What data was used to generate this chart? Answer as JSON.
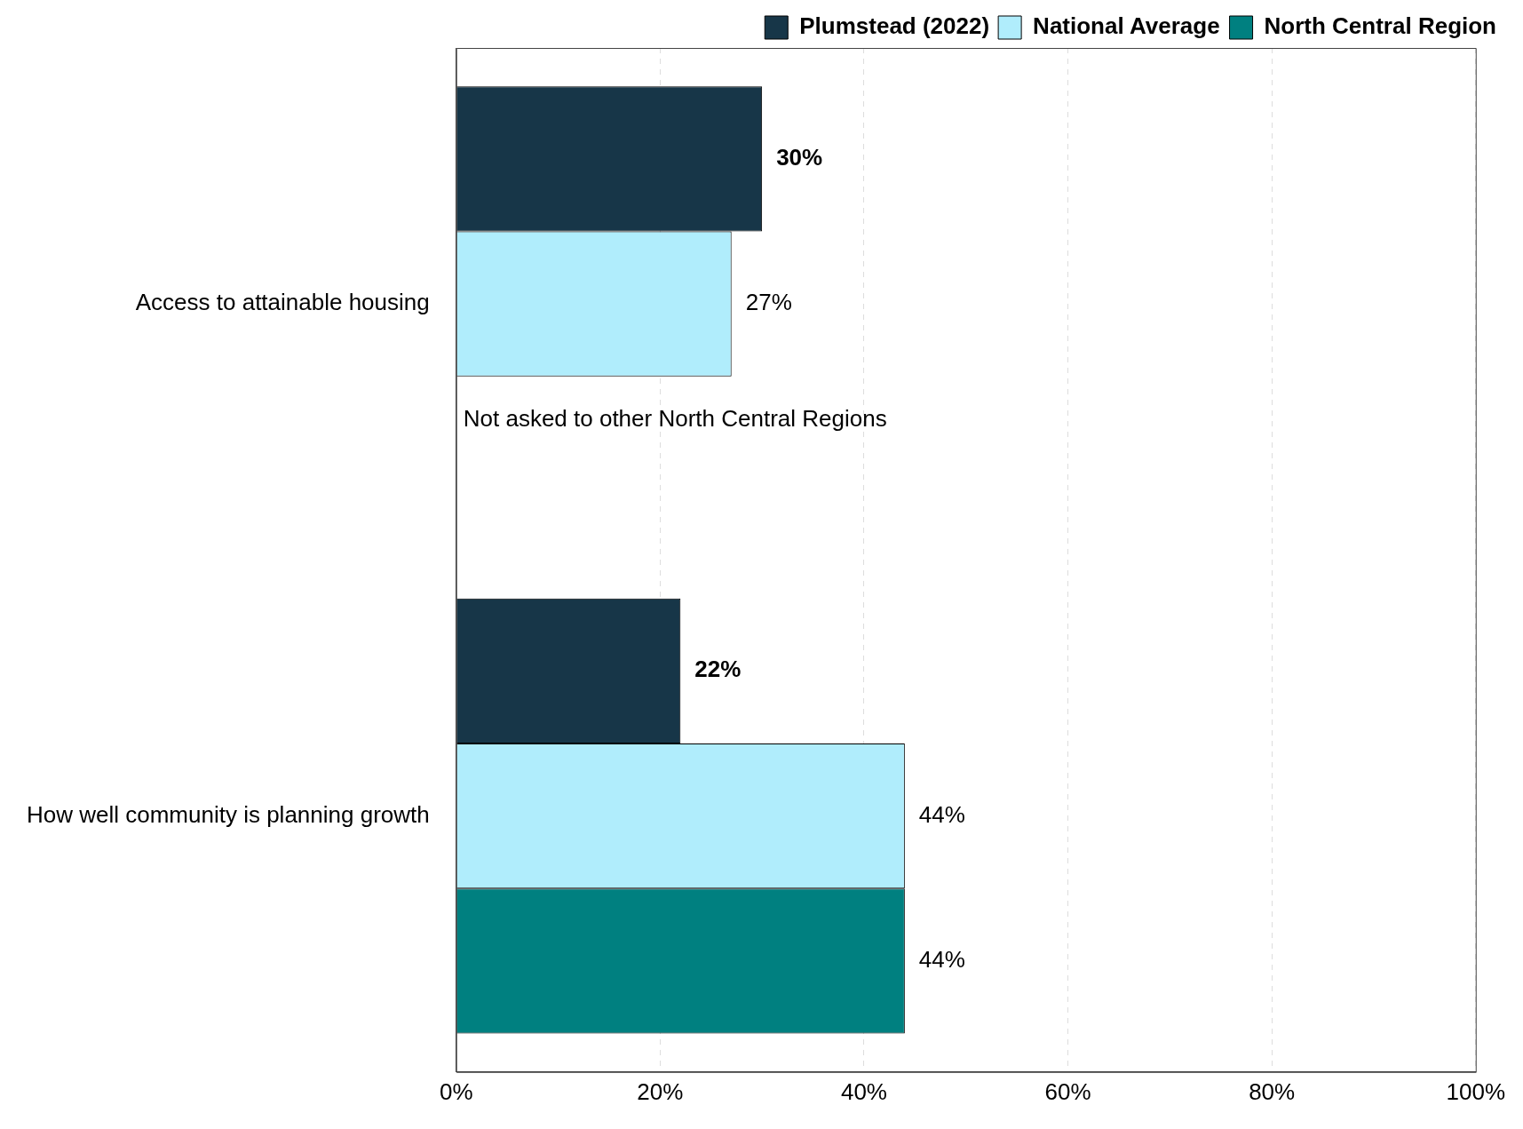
{
  "chart_data": {
    "type": "bar",
    "orientation": "horizontal",
    "categories": [
      "Access to attainable housing",
      "How well community is planning growth"
    ],
    "series": [
      {
        "name": "Plumstead (2022)",
        "color": "#173648",
        "values": [
          30,
          22
        ],
        "value_labels": [
          "30%",
          "22%"
        ]
      },
      {
        "name": "National Average",
        "color": "#b0edfc",
        "values": [
          27,
          44
        ],
        "value_labels": [
          "27%",
          "44%"
        ]
      },
      {
        "name": "North Central Region",
        "color": "#008080",
        "values": [
          null,
          44
        ],
        "value_labels": [
          null,
          "44%"
        ]
      }
    ],
    "xlim": [
      0,
      100
    ],
    "xticks": [
      {
        "value": 0,
        "label": "0%"
      },
      {
        "value": 20,
        "label": "20%"
      },
      {
        "value": 40,
        "label": "40%"
      },
      {
        "value": 60,
        "label": "60%"
      },
      {
        "value": 80,
        "label": "80%"
      },
      {
        "value": 100,
        "label": "100%"
      }
    ],
    "grid": "x",
    "legend": "top right",
    "annotations": [
      "Not asked to other North Central Regions"
    ]
  }
}
